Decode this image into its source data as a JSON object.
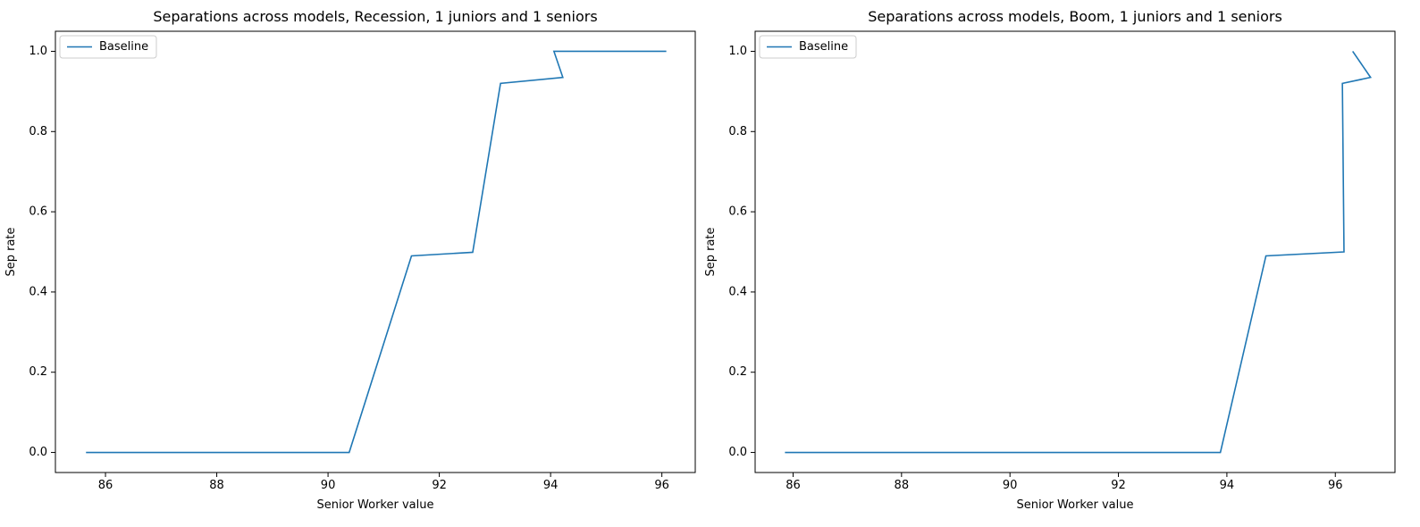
{
  "colors": {
    "series": "#1f77b4",
    "axes": "#000000",
    "legend_border": "#cccccc",
    "background": "#ffffff"
  },
  "chart_data": [
    {
      "type": "line",
      "title": "Separations across models, Recession, 1 juniors and 1 seniors",
      "xlabel": "Senior Worker value",
      "ylabel": "Sep rate",
      "xlim": [
        85.1,
        96.6
      ],
      "ylim": [
        -0.05,
        1.05
      ],
      "xticks": [
        86,
        88,
        90,
        92,
        94,
        96
      ],
      "xtick_labels": [
        "86",
        "88",
        "90",
        "92",
        "94",
        "96"
      ],
      "yticks": [
        0.0,
        0.2,
        0.4,
        0.6,
        0.8,
        1.0
      ],
      "ytick_labels": [
        "0.0",
        "0.2",
        "0.4",
        "0.6",
        "0.8",
        "1.0"
      ],
      "legend_position": "upper left",
      "grid": false,
      "series": [
        {
          "name": "Baseline",
          "x": [
            85.65,
            90.38,
            91.5,
            92.6,
            93.1,
            94.22,
            94.06,
            96.08
          ],
          "y": [
            0.0,
            0.0,
            0.49,
            0.499,
            0.92,
            0.935,
            1.0,
            1.0
          ]
        }
      ]
    },
    {
      "type": "line",
      "title": "Separations across models, Boom, 1 juniors and 1 seniors",
      "xlabel": "Senior Worker value",
      "ylabel": "Sep rate",
      "xlim": [
        85.3,
        97.1
      ],
      "ylim": [
        -0.05,
        1.05
      ],
      "xticks": [
        86,
        88,
        90,
        92,
        94,
        96
      ],
      "xtick_labels": [
        "86",
        "88",
        "90",
        "92",
        "94",
        "96"
      ],
      "yticks": [
        0.0,
        0.2,
        0.4,
        0.6,
        0.8,
        1.0
      ],
      "ytick_labels": [
        "0.0",
        "0.2",
        "0.4",
        "0.6",
        "0.8",
        "1.0"
      ],
      "legend_position": "upper left",
      "grid": false,
      "series": [
        {
          "name": "Baseline",
          "x": [
            85.85,
            93.88,
            94.72,
            96.16,
            96.13,
            96.65,
            96.32
          ],
          "y": [
            0.0,
            0.0,
            0.49,
            0.5,
            0.92,
            0.935,
            1.0
          ]
        }
      ]
    }
  ]
}
